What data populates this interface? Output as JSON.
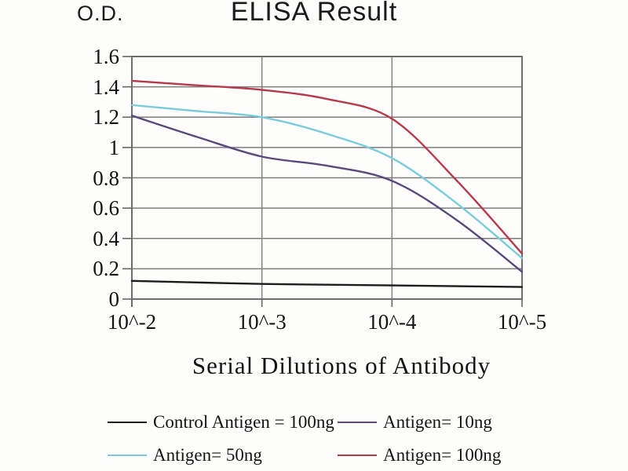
{
  "chart_data": {
    "type": "line",
    "title": "ELISA Result",
    "od_label": "O.D.",
    "xlabel": "Serial Dilutions of Antibody",
    "ylabel": "O.D.",
    "ylim": [
      0,
      1.6
    ],
    "grid": true,
    "legend_position": "bottom",
    "background": "#fdfdfb",
    "grid_color": "#7d7d7d",
    "axis_color": "#666666",
    "yticks": [
      {
        "label": "0",
        "value": 0
      },
      {
        "label": "0.2",
        "value": 0.2
      },
      {
        "label": "0.4",
        "value": 0.4
      },
      {
        "label": "0.6",
        "value": 0.6
      },
      {
        "label": "0.8",
        "value": 0.8
      },
      {
        "label": "1",
        "value": 1
      },
      {
        "label": "1.2",
        "value": 1.2
      },
      {
        "label": "1.4",
        "value": 1.4
      },
      {
        "label": "1.6",
        "value": 1.6
      }
    ],
    "xticks": [
      {
        "label": "10^-2",
        "exp": 2
      },
      {
        "label": "10^-3",
        "exp": 3
      },
      {
        "label": "10^-4",
        "exp": 4
      },
      {
        "label": "10^-5",
        "exp": 5
      }
    ],
    "x_exponents": [
      2,
      2.5,
      3,
      3.5,
      4,
      4.5,
      5
    ],
    "series": [
      {
        "name": "Control Antigen = 100ng",
        "color": "#1c1c1c",
        "values": [
          0.12,
          0.11,
          0.1,
          0.095,
          0.09,
          0.085,
          0.08
        ]
      },
      {
        "name": "Antigen= 10ng",
        "color": "#59497c",
        "values": [
          1.21,
          1.07,
          0.94,
          0.88,
          0.78,
          0.52,
          0.18
        ]
      },
      {
        "name": "Antigen= 50ng",
        "color": "#7accdb",
        "values": [
          1.28,
          1.24,
          1.2,
          1.09,
          0.93,
          0.63,
          0.27
        ]
      },
      {
        "name": "Antigen= 100ng",
        "color": "#b63a4b",
        "values": [
          1.44,
          1.41,
          1.38,
          1.32,
          1.19,
          0.78,
          0.3
        ]
      }
    ],
    "key_points_at_decades": {
      "note": "values read at 10^-2, 10^-3, 10^-4, 10^-5",
      "Control Antigen = 100ng": [
        0.12,
        0.1,
        0.09,
        0.08
      ],
      "Antigen= 10ng": [
        1.21,
        0.94,
        0.78,
        0.18
      ],
      "Antigen= 50ng": [
        1.28,
        1.2,
        0.93,
        0.27
      ],
      "Antigen= 100ng": [
        1.44,
        1.38,
        1.19,
        0.3
      ]
    },
    "legend_rows": [
      [
        0,
        1
      ],
      [
        2,
        3
      ]
    ]
  }
}
